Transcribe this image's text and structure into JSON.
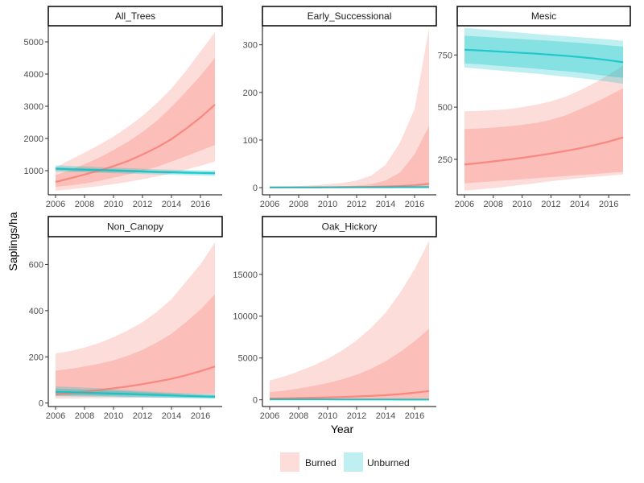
{
  "chart_data": {
    "type": "area",
    "xlabel": "Year",
    "ylabel": "Saplings/ha",
    "grid": false,
    "legend_position": "bottom",
    "x_ticks": [
      2006,
      2008,
      2010,
      2012,
      2014,
      2016
    ],
    "series_meta": [
      {
        "name": "Burned",
        "line_color": "#F8766D",
        "band_color": "#F8766D"
      },
      {
        "name": "Unburned",
        "line_color": "#00BFC4",
        "band_color": "#00BFC4"
      }
    ],
    "panels": [
      {
        "title": "All_Trees",
        "ylim": [
          250,
          5500
        ],
        "y_ticks": [
          1000,
          2000,
          3000,
          4000,
          5000
        ],
        "x": [
          2006,
          2007,
          2008,
          2009,
          2010,
          2011,
          2012,
          2013,
          2014,
          2015,
          2016,
          2017
        ],
        "series": [
          {
            "name": "Burned",
            "mean": [
              650,
              760,
              880,
              1000,
              1140,
              1300,
              1500,
              1720,
              1980,
              2300,
              2650,
              3050
            ],
            "inner_lower": [
              500,
              540,
              600,
              680,
              780,
              880,
              990,
              1120,
              1280,
              1450,
              1620,
              1800
            ],
            "inner_upper": [
              860,
              1020,
              1200,
              1400,
              1640,
              1900,
              2200,
              2550,
              2980,
              3450,
              3950,
              4500
            ],
            "outer_lower": [
              380,
              420,
              470,
              520,
              580,
              650,
              730,
              820,
              920,
              1030,
              1150,
              1280
            ],
            "outer_upper": [
              1100,
              1330,
              1560,
              1800,
              2060,
              2360,
              2700,
              3100,
              3550,
              4100,
              4700,
              5300
            ]
          },
          {
            "name": "Unburned",
            "mean": [
              1060,
              1045,
              1030,
              1015,
              1005,
              990,
              975,
              960,
              950,
              940,
              930,
              920
            ],
            "inner_lower": [
              1010,
              998,
              985,
              972,
              960,
              948,
              935,
              922,
              910,
              900,
              890,
              880
            ],
            "inner_upper": [
              1110,
              1095,
              1080,
              1060,
              1048,
              1032,
              1015,
              1000,
              990,
              980,
              970,
              962
            ],
            "outer_lower": [
              970,
              958,
              945,
              932,
              920,
              905,
              892,
              880,
              868,
              856,
              845,
              835
            ],
            "outer_upper": [
              1170,
              1150,
              1130,
              1110,
              1095,
              1078,
              1060,
              1045,
              1033,
              1022,
              1012,
              1005
            ]
          }
        ]
      },
      {
        "title": "Early_Successional",
        "ylim": [
          -15,
          340
        ],
        "y_ticks": [
          0,
          100,
          200,
          300
        ],
        "x": [
          2006,
          2007,
          2008,
          2009,
          2010,
          2011,
          2012,
          2013,
          2014,
          2015,
          2016,
          2017
        ],
        "series": [
          {
            "name": "Burned",
            "mean": [
              0.3,
              0.4,
              0.5,
              0.6,
              0.8,
              1.0,
              1.3,
              1.8,
              2.5,
              3.5,
              5,
              8
            ],
            "inner_lower": [
              0,
              0,
              0,
              0,
              0,
              0,
              0,
              0,
              0,
              0,
              0,
              0
            ],
            "inner_upper": [
              1,
              1.2,
              1.5,
              2,
              2.5,
              3.2,
              4.5,
              7,
              15,
              32,
              70,
              130
            ],
            "outer_lower": [
              0,
              0,
              0,
              0,
              0,
              0,
              0,
              0,
              0,
              0,
              0,
              0
            ],
            "outer_upper": [
              2,
              2.5,
              3.5,
              5,
              7,
              10,
              15,
              25,
              48,
              95,
              165,
              335
            ]
          },
          {
            "name": "Unburned",
            "mean": [
              0.5,
              0.5,
              0.6,
              0.6,
              0.7,
              0.7,
              0.8,
              0.8,
              0.9,
              1.0,
              1.0,
              1.1
            ],
            "inner_lower": [
              0,
              0,
              0,
              0,
              0,
              0,
              0,
              0,
              0,
              0,
              0,
              0
            ],
            "inner_upper": [
              1,
              1.1,
              1.2,
              1.3,
              1.4,
              1.5,
              1.6,
              1.7,
              1.8,
              1.9,
              2,
              2.2
            ],
            "outer_lower": [
              0,
              0,
              0,
              0,
              0,
              0,
              0,
              0,
              0,
              0,
              0,
              0
            ],
            "outer_upper": [
              2,
              2.1,
              2.2,
              2.4,
              2.6,
              2.8,
              3,
              3.2,
              3.4,
              3.6,
              3.8,
              4
            ]
          }
        ]
      },
      {
        "title": "Mesic",
        "ylim": [
          80,
          890
        ],
        "y_ticks": [
          250,
          500,
          750
        ],
        "x": [
          2006,
          2007,
          2008,
          2009,
          2010,
          2011,
          2012,
          2013,
          2014,
          2015,
          2016,
          2017
        ],
        "series": [
          {
            "name": "Burned",
            "mean": [
              225,
              232,
              240,
              248,
              257,
              267,
              278,
              290,
              303,
              318,
              335,
              355
            ],
            "inner_lower": [
              135,
              140,
              145,
              150,
              155,
              160,
              165,
              170,
              175,
              180,
              185,
              190
            ],
            "inner_upper": [
              395,
              398,
              402,
              408,
              415,
              425,
              440,
              460,
              490,
              520,
              555,
              590
            ],
            "outer_lower": [
              100,
              106,
              112,
              120,
              128,
              136,
              145,
              152,
              160,
              166,
              172,
              178
            ],
            "outer_upper": [
              480,
              482,
              485,
              490,
              500,
              512,
              528,
              550,
              580,
              615,
              655,
              700
            ]
          },
          {
            "name": "Unburned",
            "mean": [
              775,
              772,
              768,
              764,
              760,
              756,
              751,
              746,
              740,
              733,
              725,
              715
            ],
            "inner_lower": [
              710,
              706,
              700,
              695,
              690,
              684,
              678,
              672,
              665,
              657,
              648,
              640
            ],
            "inner_upper": [
              842,
              838,
              834,
              830,
              826,
              822,
              818,
              813,
              808,
              802,
              796,
              790
            ],
            "outer_lower": [
              690,
              684,
              678,
              672,
              666,
              660,
              653,
              646,
              639,
              631,
              622,
              612
            ],
            "outer_upper": [
              880,
              874,
              868,
              862,
              856,
              850,
              845,
              840,
              835,
              830,
              825,
              818
            ]
          }
        ]
      },
      {
        "title": "Non_Canopy",
        "ylim": [
          -15,
          720
        ],
        "y_ticks": [
          0,
          200,
          400,
          600
        ],
        "x": [
          2006,
          2007,
          2008,
          2009,
          2010,
          2011,
          2012,
          2013,
          2014,
          2015,
          2016,
          2017
        ],
        "series": [
          {
            "name": "Burned",
            "mean": [
              38,
              43,
              49,
              56,
              64,
              72,
              82,
              93,
              105,
              120,
              138,
              158
            ],
            "inner_lower": [
              30,
              31,
              32,
              33,
              34,
              35,
              36,
              37,
              38,
              39,
              40,
              41
            ],
            "inner_upper": [
              140,
              148,
              158,
              170,
              185,
              205,
              230,
              262,
              300,
              350,
              405,
              470
            ],
            "outer_lower": [
              20,
              20,
              21,
              21,
              22,
              22,
              23,
              23,
              24,
              24,
              25,
              25
            ],
            "outer_upper": [
              215,
              225,
              240,
              260,
              285,
              315,
              350,
              395,
              450,
              525,
              600,
              695
            ]
          },
          {
            "name": "Unburned",
            "mean": [
              48,
              47,
              45,
              43,
              41,
              39,
              37,
              35,
              33,
              31,
              29,
              27
            ],
            "inner_lower": [
              35,
              34,
              33,
              31,
              30,
              28,
              27,
              26,
              24,
              23,
              22,
              21
            ],
            "inner_upper": [
              62,
              60,
              58,
              56,
              53,
              50,
              47,
              44,
              41,
              38,
              36,
              34
            ],
            "outer_lower": [
              30,
              29,
              28,
              27,
              26,
              25,
              24,
              23,
              22,
              21,
              20,
              19
            ],
            "outer_upper": [
              72,
              70,
              67,
              64,
              60,
              56,
              52,
              48,
              45,
              42,
              40,
              38
            ]
          }
        ]
      },
      {
        "title": "Oak_Hickory",
        "ylim": [
          -800,
          19500
        ],
        "y_ticks": [
          0,
          5000,
          10000,
          15000
        ],
        "x": [
          2006,
          2007,
          2008,
          2009,
          2010,
          2011,
          2012,
          2013,
          2014,
          2015,
          2016,
          2017
        ],
        "series": [
          {
            "name": "Burned",
            "mean": [
              150,
              180,
              210,
              250,
              290,
              340,
              400,
              470,
              560,
              680,
              850,
              1050
            ],
            "inner_lower": [
              0,
              0,
              0,
              0,
              0,
              0,
              0,
              0,
              0,
              0,
              0,
              0
            ],
            "inner_upper": [
              900,
              1100,
              1350,
              1650,
              2000,
              2450,
              3000,
              3700,
              4600,
              5700,
              7000,
              8500
            ],
            "outer_lower": [
              0,
              0,
              0,
              0,
              0,
              0,
              0,
              0,
              0,
              0,
              0,
              0
            ],
            "outer_upper": [
              2300,
              2800,
              3400,
              4100,
              4900,
              5900,
              7100,
              8600,
              10400,
              12800,
              15600,
              19000
            ]
          },
          {
            "name": "Unburned",
            "mean": [
              50,
              48,
              46,
              44,
              42,
              40,
              38,
              36,
              34,
              32,
              30,
              28
            ],
            "inner_lower": [
              0,
              0,
              0,
              0,
              0,
              0,
              0,
              0,
              0,
              0,
              0,
              0
            ],
            "inner_upper": [
              120,
              115,
              110,
              105,
              100,
              95,
              90,
              85,
              80,
              75,
              70,
              65
            ],
            "outer_lower": [
              0,
              0,
              0,
              0,
              0,
              0,
              0,
              0,
              0,
              0,
              0,
              0
            ],
            "outer_upper": [
              200,
              192,
              185,
              178,
              170,
              162,
              155,
              148,
              140,
              132,
              125,
              118
            ]
          }
        ]
      }
    ]
  }
}
